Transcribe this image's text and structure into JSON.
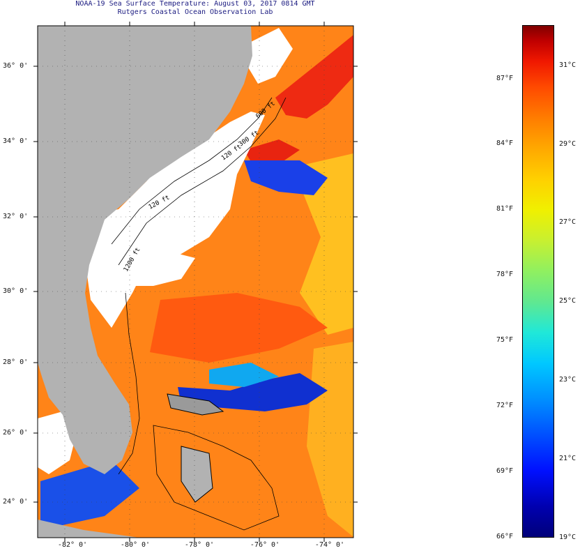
{
  "header": {
    "title": "NOAA-19 Sea Surface Temperature:  August 03, 2017 0814 GMT",
    "subtitle": "Rutgers Coastal Ocean Observation Lab"
  },
  "map": {
    "lat_range": [
      23,
      37
    ],
    "lon_range": [
      -83,
      -73
    ],
    "lat_ticks": [
      "36° 0'",
      "34° 0'",
      "32° 0'",
      "30° 0'",
      "28° 0'",
      "26° 0'",
      "24° 0'"
    ],
    "lon_ticks": [
      "-82° 0'",
      "-80° 0'",
      "-78° 0'",
      "-76° 0'",
      "-74° 0'"
    ],
    "contour_labels": [
      "120 ft",
      "120 ft",
      "300 ft",
      "600 ft",
      "1200 ft"
    ],
    "colors": {
      "land": "#b2b2b2",
      "cloud": "#ffffff",
      "warm_water": "#ff7a10",
      "hot_water": "#e81a10",
      "cool_water": "#1030e0"
    }
  },
  "legend": {
    "fahrenheit": [
      "87°F",
      "84°F",
      "81°F",
      "78°F",
      "75°F",
      "72°F",
      "69°F",
      "66°F"
    ],
    "celsius": [
      "31°C",
      "29°C",
      "27°C",
      "25°C",
      "23°C",
      "21°C",
      "19°C"
    ]
  }
}
